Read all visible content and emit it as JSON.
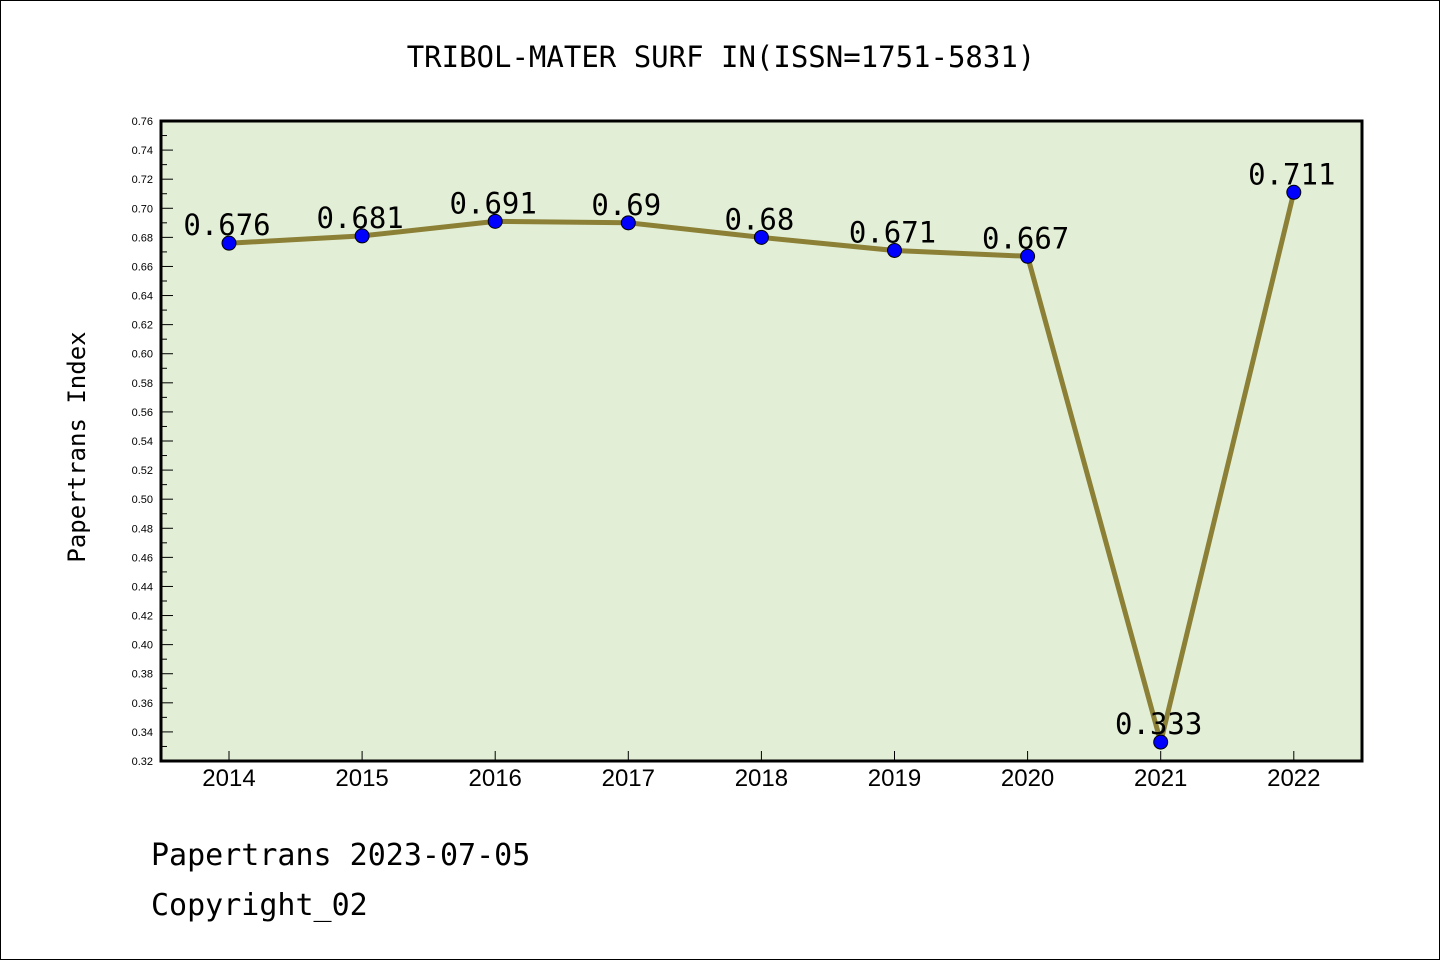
{
  "chart_data": {
    "type": "line",
    "title": "TRIBOL-MATER SURF IN(ISSN=1751-5831)",
    "xlabel": "",
    "ylabel": "Papertrans Index",
    "categories": [
      "2014",
      "2015",
      "2016",
      "2017",
      "2018",
      "2019",
      "2020",
      "2021",
      "2022"
    ],
    "values": [
      0.676,
      0.681,
      0.691,
      0.69,
      0.68,
      0.671,
      0.667,
      0.333,
      0.711
    ],
    "data_labels": [
      "0.676",
      "0.681",
      "0.691",
      "0.69",
      "0.68",
      "0.671",
      "0.667",
      "0.333",
      "0.711"
    ],
    "ylim": [
      0.32,
      0.76
    ],
    "yticks": [
      "0.32",
      "0.34",
      "0.36",
      "0.38",
      "0.40",
      "0.42",
      "0.44",
      "0.46",
      "0.48",
      "0.50",
      "0.52",
      "0.54",
      "0.56",
      "0.58",
      "0.60",
      "0.62",
      "0.64",
      "0.66",
      "0.68",
      "0.70",
      "0.72",
      "0.74",
      "0.76"
    ],
    "grid": false,
    "colors": {
      "plot_background": "#e2efd6",
      "line": "#8c8036",
      "marker": "#0000ff"
    }
  },
  "footer": {
    "line1": "Papertrans 2023-07-05",
    "line2": "Copyright_02"
  }
}
